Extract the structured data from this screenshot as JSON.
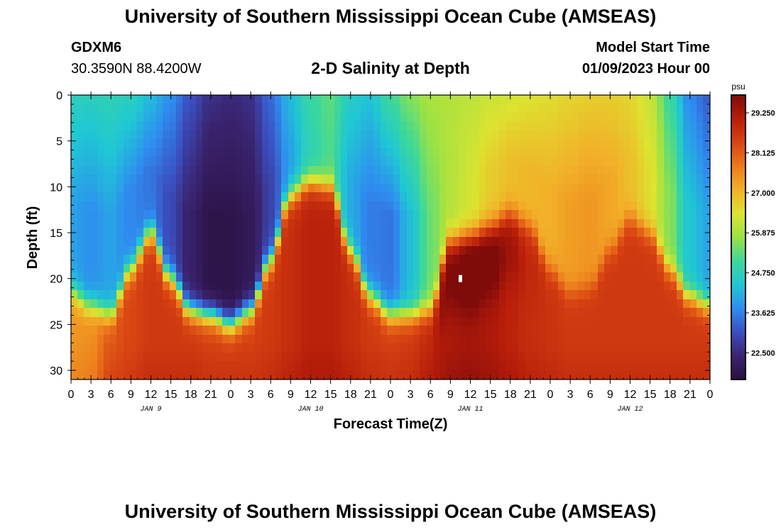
{
  "header": {
    "title": "University of Southern Mississippi Ocean Cube (AMSEAS)",
    "station_id": "GDXM6",
    "station_coords": "30.3590N  88.4200W",
    "subtitle": "2-D Salinity at Depth",
    "model_start_label": "Model Start Time",
    "model_start_value": "01/09/2023 Hour 00"
  },
  "footer": {
    "title": "University of Southern Mississippi Ocean Cube (AMSEAS)"
  },
  "chart_data": {
    "type": "heatmap",
    "title": "2-D Salinity at Depth",
    "xlabel": "Forecast Time(Z)",
    "ylabel": "Depth (ft)",
    "x_unit": "hours from model start",
    "xlim": [
      0,
      96
    ],
    "ylim": [
      0,
      31
    ],
    "x_tick_labels": [
      "0",
      "3",
      "6",
      "9",
      "12",
      "15",
      "18",
      "21",
      "0",
      "3",
      "6",
      "9",
      "12",
      "15",
      "18",
      "21",
      "0",
      "3",
      "6",
      "9",
      "12",
      "15",
      "18",
      "21",
      "0",
      "3",
      "6",
      "9",
      "12",
      "15",
      "18",
      "21",
      "0"
    ],
    "y_ticks": [
      0,
      5,
      10,
      15,
      20,
      25,
      30
    ],
    "day_labels": [
      {
        "hour": 12,
        "label": "JAN 9"
      },
      {
        "hour": 36,
        "label": "JAN 10"
      },
      {
        "hour": 60,
        "label": "JAN 11"
      },
      {
        "hour": 84,
        "label": "JAN 12"
      }
    ],
    "colorbar": {
      "unit": "psu",
      "min": 21.75,
      "max": 29.75,
      "tick_values": [
        22.5,
        23.625,
        24.75,
        25.875,
        27.0,
        28.125,
        29.25
      ],
      "tick_labels": [
        "22.500",
        "23.625",
        "24.750",
        "25.875",
        "27.000",
        "28.125",
        "29.250"
      ],
      "colors": [
        "#2a0f3e",
        "#3a2470",
        "#3b4fc0",
        "#2f8cf0",
        "#1fc7d4",
        "#3dd79a",
        "#9be245",
        "#dce330",
        "#f2b028",
        "#ec7a1c",
        "#d84413",
        "#b81d0a",
        "#7f0b0b"
      ]
    },
    "profiles": {
      "hours": [
        0,
        3,
        6,
        9,
        12,
        15,
        18,
        21,
        24,
        27,
        30,
        33,
        36,
        39,
        42,
        45,
        48,
        51,
        54,
        57,
        60,
        63,
        66,
        69,
        72,
        75,
        78,
        81,
        84,
        87,
        90,
        93,
        96
      ],
      "thermocline_depth_ft": [
        21.5,
        23,
        24,
        19,
        15,
        20,
        23.5,
        24,
        25,
        23.5,
        18,
        11,
        9.5,
        10,
        17,
        22,
        24,
        24,
        23.5,
        16,
        15.5,
        14.5,
        13,
        14.5,
        19,
        21.5,
        21,
        17,
        13.5,
        15,
        19,
        22,
        23
      ],
      "surface_psu": [
        24.7,
        24.7,
        24.8,
        24.7,
        24.3,
        23.8,
        23.1,
        22.6,
        22.5,
        22.6,
        23.4,
        24.3,
        25.0,
        25.3,
        24.6,
        24.4,
        25.1,
        25.6,
        25.9,
        26.0,
        26.1,
        26.2,
        26.3,
        26.4,
        26.5,
        26.6,
        26.7,
        26.7,
        26.6,
        26.2,
        25.0,
        23.7,
        23.2
      ],
      "core_psu": [
        24.0,
        23.8,
        24.0,
        23.7,
        23.5,
        23.0,
        22.3,
        21.9,
        21.9,
        22.1,
        22.9,
        24.0,
        24.8,
        25.2,
        24.1,
        23.6,
        23.5,
        24.3,
        25.4,
        26.0,
        26.3,
        26.7,
        26.9,
        27.0,
        27.1,
        27.3,
        27.4,
        27.2,
        26.9,
        26.5,
        25.6,
        24.4,
        24.0
      ],
      "bottom_psu": [
        27.4,
        27.5,
        28.2,
        28.4,
        28.6,
        28.6,
        28.6,
        28.5,
        28.5,
        28.5,
        28.6,
        28.8,
        29.0,
        29.0,
        28.8,
        28.6,
        28.5,
        28.6,
        28.9,
        29.2,
        29.3,
        29.2,
        29.0,
        28.8,
        28.7,
        28.6,
        28.6,
        28.6,
        28.6,
        28.6,
        28.6,
        28.6,
        28.6
      ],
      "bulge_psu": [
        0,
        0,
        0,
        0,
        0,
        0,
        0,
        0,
        0,
        0,
        0,
        0,
        0,
        0,
        0,
        0,
        0,
        0,
        0,
        0.6,
        1.0,
        0.8,
        0.4,
        0.1,
        0,
        0,
        0,
        0,
        0,
        0,
        0,
        0,
        0
      ]
    },
    "marker": {
      "hour": 58.5,
      "depth_ft": 20
    }
  }
}
